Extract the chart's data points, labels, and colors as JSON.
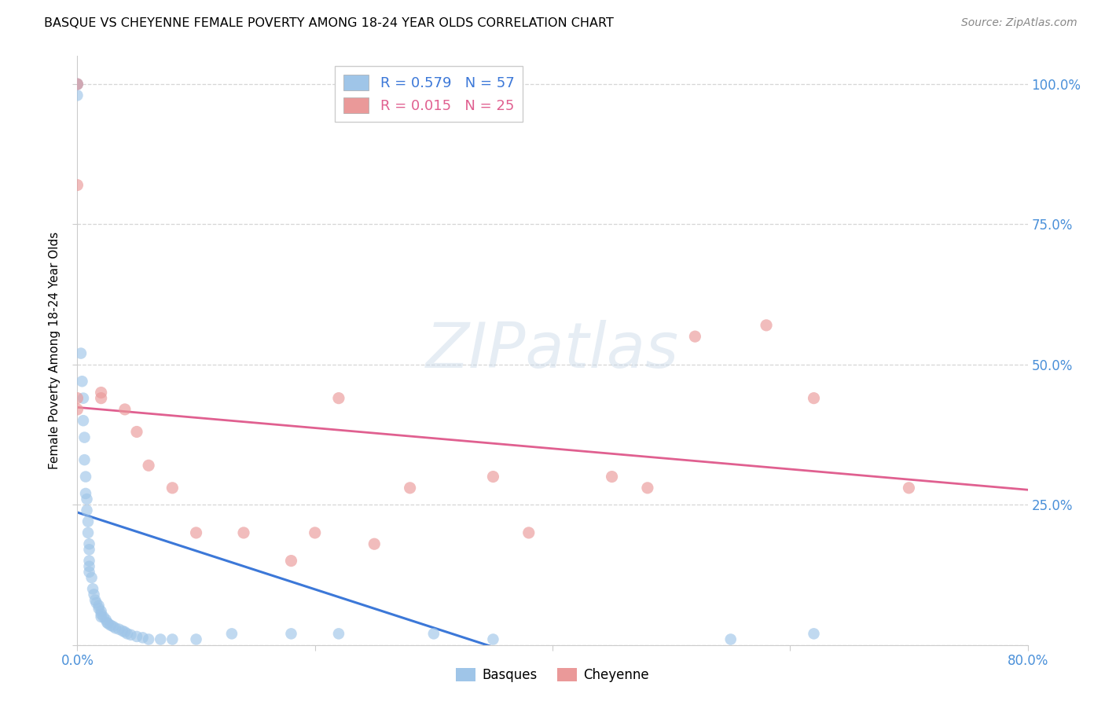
{
  "title": "BASQUE VS CHEYENNE FEMALE POVERTY AMONG 18-24 YEAR OLDS CORRELATION CHART",
  "source": "Source: ZipAtlas.com",
  "ylabel": "Female Poverty Among 18-24 Year Olds",
  "xlim": [
    0.0,
    0.8
  ],
  "ylim": [
    0.0,
    1.05
  ],
  "basque_R": 0.579,
  "basque_N": 57,
  "cheyenne_R": 0.015,
  "cheyenne_N": 25,
  "basque_color": "#9fc5e8",
  "cheyenne_color": "#ea9999",
  "basque_line_color": "#3c78d8",
  "cheyenne_line_color": "#e06090",
  "legend_basque_label": "Basques",
  "legend_cheyenne_label": "Cheyenne",
  "background_color": "#ffffff",
  "grid_color": "#cccccc",
  "tick_color": "#4a90d9",
  "basque_x": [
    0.0,
    0.0,
    0.0,
    0.0,
    0.0,
    0.003,
    0.004,
    0.005,
    0.005,
    0.006,
    0.006,
    0.007,
    0.007,
    0.008,
    0.008,
    0.009,
    0.009,
    0.01,
    0.01,
    0.01,
    0.01,
    0.01,
    0.012,
    0.013,
    0.014,
    0.015,
    0.016,
    0.018,
    0.018,
    0.02,
    0.02,
    0.02,
    0.022,
    0.024,
    0.025,
    0.026,
    0.028,
    0.03,
    0.032,
    0.035,
    0.038,
    0.04,
    0.042,
    0.045,
    0.05,
    0.055,
    0.06,
    0.07,
    0.08,
    0.1,
    0.13,
    0.18,
    0.22,
    0.3,
    0.35,
    0.55,
    0.62
  ],
  "basque_y": [
    1.0,
    1.0,
    1.0,
    1.0,
    0.98,
    0.52,
    0.47,
    0.44,
    0.4,
    0.37,
    0.33,
    0.3,
    0.27,
    0.26,
    0.24,
    0.22,
    0.2,
    0.18,
    0.17,
    0.15,
    0.14,
    0.13,
    0.12,
    0.1,
    0.09,
    0.08,
    0.075,
    0.07,
    0.065,
    0.06,
    0.055,
    0.05,
    0.05,
    0.045,
    0.04,
    0.038,
    0.035,
    0.033,
    0.03,
    0.028,
    0.025,
    0.023,
    0.02,
    0.018,
    0.015,
    0.013,
    0.01,
    0.01,
    0.01,
    0.01,
    0.02,
    0.02,
    0.02,
    0.02,
    0.01,
    0.01,
    0.02
  ],
  "cheyenne_x": [
    0.0,
    0.0,
    0.0,
    0.0,
    0.02,
    0.02,
    0.04,
    0.05,
    0.06,
    0.08,
    0.1,
    0.14,
    0.18,
    0.2,
    0.22,
    0.25,
    0.28,
    0.35,
    0.38,
    0.45,
    0.48,
    0.52,
    0.58,
    0.62,
    0.7
  ],
  "cheyenne_y": [
    1.0,
    0.82,
    0.44,
    0.42,
    0.45,
    0.44,
    0.42,
    0.38,
    0.32,
    0.28,
    0.2,
    0.2,
    0.15,
    0.2,
    0.44,
    0.18,
    0.28,
    0.3,
    0.2,
    0.3,
    0.28,
    0.55,
    0.57,
    0.44,
    0.28
  ]
}
